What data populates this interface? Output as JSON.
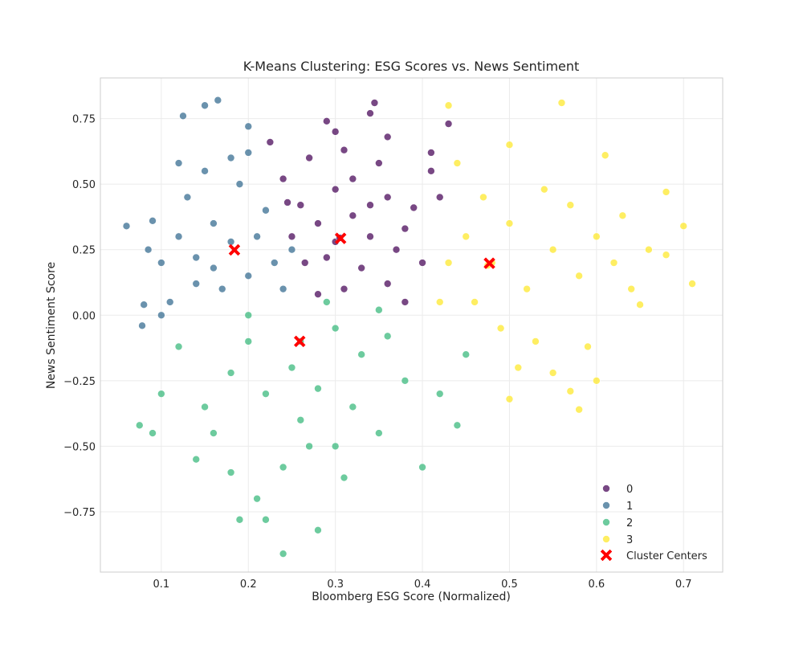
{
  "chart_data": {
    "type": "scatter",
    "title": "K-Means Clustering: ESG Scores vs. News Sentiment",
    "xlabel": "Bloomberg ESG Score (Normalized)",
    "ylabel": "News Sentiment Score",
    "xlim": [
      0.03,
      0.745
    ],
    "ylim": [
      -0.98,
      0.905
    ],
    "x_ticks": [
      0.1,
      0.2,
      0.3,
      0.4,
      0.5,
      0.6,
      0.7
    ],
    "y_ticks": [
      -0.75,
      -0.5,
      -0.25,
      0.0,
      0.25,
      0.5,
      0.75
    ],
    "x_tick_labels": [
      "0.1",
      "0.2",
      "0.3",
      "0.4",
      "0.5",
      "0.6",
      "0.7"
    ],
    "y_tick_labels": [
      "−0.75",
      "−0.50",
      "−0.25",
      "0.00",
      "0.25",
      "0.50",
      "0.75"
    ],
    "grid": true,
    "legend_position": "lower-right",
    "series": [
      {
        "name": "0",
        "color": "#440154",
        "points": [
          [
            0.24,
            0.52
          ],
          [
            0.26,
            0.42
          ],
          [
            0.28,
            0.35
          ],
          [
            0.3,
            0.48
          ],
          [
            0.32,
            0.38
          ],
          [
            0.34,
            0.3
          ],
          [
            0.36,
            0.45
          ],
          [
            0.38,
            0.33
          ],
          [
            0.27,
            0.6
          ],
          [
            0.31,
            0.63
          ],
          [
            0.35,
            0.58
          ],
          [
            0.29,
            0.22
          ],
          [
            0.33,
            0.18
          ],
          [
            0.37,
            0.25
          ],
          [
            0.39,
            0.41
          ],
          [
            0.25,
            0.3
          ],
          [
            0.41,
            0.55
          ],
          [
            0.3,
            0.7
          ],
          [
            0.34,
            0.77
          ],
          [
            0.345,
            0.81
          ],
          [
            0.43,
            0.73
          ],
          [
            0.28,
            0.08
          ],
          [
            0.31,
            0.1
          ],
          [
            0.36,
            0.12
          ],
          [
            0.38,
            0.05
          ],
          [
            0.265,
            0.2
          ],
          [
            0.4,
            0.2
          ],
          [
            0.245,
            0.43
          ],
          [
            0.32,
            0.52
          ],
          [
            0.34,
            0.42
          ],
          [
            0.225,
            0.66
          ],
          [
            0.29,
            0.74
          ],
          [
            0.41,
            0.62
          ],
          [
            0.42,
            0.45
          ],
          [
            0.36,
            0.68
          ],
          [
            0.3,
            0.28
          ],
          [
            0.305,
            0.295
          ]
        ]
      },
      {
        "name": "1",
        "color": "#31688e",
        "points": [
          [
            0.12,
            0.3
          ],
          [
            0.14,
            0.22
          ],
          [
            0.16,
            0.35
          ],
          [
            0.18,
            0.28
          ],
          [
            0.2,
            0.15
          ],
          [
            0.22,
            0.4
          ],
          [
            0.17,
            0.1
          ],
          [
            0.13,
            0.45
          ],
          [
            0.15,
            0.55
          ],
          [
            0.19,
            0.5
          ],
          [
            0.21,
            0.3
          ],
          [
            0.23,
            0.2
          ],
          [
            0.1,
            0.2
          ],
          [
            0.11,
            0.05
          ],
          [
            0.09,
            0.36
          ],
          [
            0.085,
            0.25
          ],
          [
            0.15,
            0.8
          ],
          [
            0.165,
            0.82
          ],
          [
            0.125,
            0.76
          ],
          [
            0.06,
            0.34
          ],
          [
            0.08,
            0.04
          ],
          [
            0.078,
            -0.04
          ],
          [
            0.2,
            0.72
          ],
          [
            0.14,
            0.12
          ],
          [
            0.24,
            0.1
          ],
          [
            0.18,
            0.6
          ],
          [
            0.25,
            0.25
          ],
          [
            0.12,
            0.58
          ],
          [
            0.1,
            0.0
          ],
          [
            0.2,
            0.62
          ],
          [
            0.16,
            0.18
          ]
        ]
      },
      {
        "name": "2",
        "color": "#35b779",
        "points": [
          [
            0.2,
            -0.1
          ],
          [
            0.25,
            -0.2
          ],
          [
            0.3,
            -0.05
          ],
          [
            0.22,
            -0.3
          ],
          [
            0.28,
            -0.28
          ],
          [
            0.33,
            -0.15
          ],
          [
            0.36,
            -0.08
          ],
          [
            0.18,
            -0.22
          ],
          [
            0.15,
            -0.35
          ],
          [
            0.26,
            -0.4
          ],
          [
            0.32,
            -0.35
          ],
          [
            0.38,
            -0.25
          ],
          [
            0.12,
            -0.12
          ],
          [
            0.1,
            -0.3
          ],
          [
            0.09,
            -0.45
          ],
          [
            0.14,
            -0.55
          ],
          [
            0.18,
            -0.6
          ],
          [
            0.21,
            -0.7
          ],
          [
            0.24,
            -0.58
          ],
          [
            0.27,
            -0.5
          ],
          [
            0.3,
            -0.5
          ],
          [
            0.35,
            -0.45
          ],
          [
            0.4,
            -0.58
          ],
          [
            0.44,
            -0.42
          ],
          [
            0.42,
            -0.3
          ],
          [
            0.19,
            -0.78
          ],
          [
            0.22,
            -0.78
          ],
          [
            0.28,
            -0.82
          ],
          [
            0.24,
            -0.91
          ],
          [
            0.075,
            -0.42
          ],
          [
            0.29,
            0.05
          ],
          [
            0.35,
            0.02
          ],
          [
            0.2,
            0.0
          ],
          [
            0.45,
            -0.15
          ],
          [
            0.26,
            -0.1
          ],
          [
            0.31,
            -0.62
          ],
          [
            0.16,
            -0.45
          ]
        ]
      },
      {
        "name": "3",
        "color": "#fde725",
        "points": [
          [
            0.45,
            0.3
          ],
          [
            0.48,
            0.2
          ],
          [
            0.5,
            0.35
          ],
          [
            0.52,
            0.1
          ],
          [
            0.55,
            0.25
          ],
          [
            0.58,
            0.15
          ],
          [
            0.6,
            0.3
          ],
          [
            0.62,
            0.2
          ],
          [
            0.46,
            0.05
          ],
          [
            0.49,
            -0.05
          ],
          [
            0.53,
            -0.1
          ],
          [
            0.57,
            0.42
          ],
          [
            0.54,
            0.48
          ],
          [
            0.47,
            0.45
          ],
          [
            0.43,
            0.2
          ],
          [
            0.42,
            0.05
          ],
          [
            0.64,
            0.1
          ],
          [
            0.66,
            0.25
          ],
          [
            0.68,
            0.23
          ],
          [
            0.7,
            0.34
          ],
          [
            0.71,
            0.12
          ],
          [
            0.68,
            0.47
          ],
          [
            0.65,
            0.04
          ],
          [
            0.59,
            -0.12
          ],
          [
            0.55,
            -0.22
          ],
          [
            0.5,
            -0.32
          ],
          [
            0.57,
            -0.29
          ],
          [
            0.58,
            -0.36
          ],
          [
            0.61,
            0.61
          ],
          [
            0.43,
            0.8
          ],
          [
            0.56,
            0.81
          ],
          [
            0.44,
            0.58
          ],
          [
            0.5,
            0.65
          ],
          [
            0.63,
            0.38
          ],
          [
            0.6,
            -0.25
          ],
          [
            0.51,
            -0.2
          ],
          [
            0.475,
            0.19
          ]
        ]
      }
    ],
    "centers": {
      "name": "Cluster Centers",
      "color": "#ff0000",
      "points": [
        [
          0.306,
          0.293
        ],
        [
          0.184,
          0.249
        ],
        [
          0.259,
          -0.1
        ],
        [
          0.477,
          0.198
        ]
      ]
    }
  }
}
